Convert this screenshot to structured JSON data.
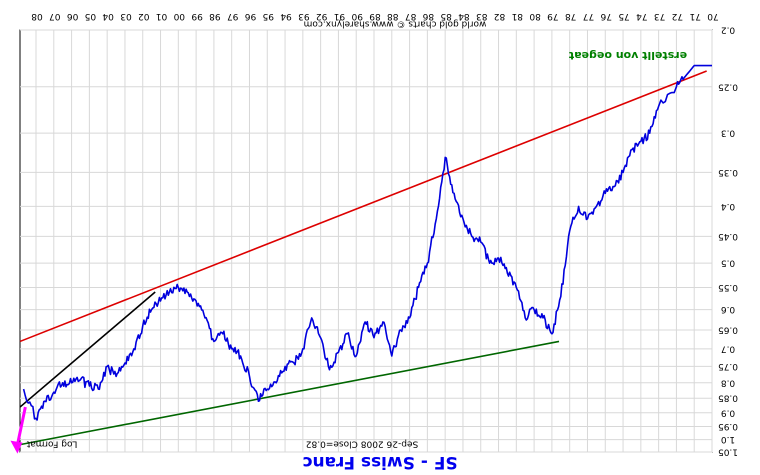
{
  "chart_data": {
    "type": "line",
    "orientation": "rotated-180",
    "title": "SF - Swiss Franc",
    "source_note": "world gold charts © www.sharelynx.com",
    "author_note": "erstellt von oegeat",
    "scale_label": "Log Format",
    "status_text": "Sep-26 2008   Close=0.82",
    "x_ticks": [
      "70",
      "71",
      "72",
      "73",
      "74",
      "75",
      "76",
      "77",
      "78",
      "79",
      "80",
      "81",
      "82",
      "83",
      "84",
      "85",
      "86",
      "87",
      "88",
      "89",
      "90",
      "91",
      "92",
      "93",
      "94",
      "95",
      "96",
      "97",
      "98",
      "99",
      "00",
      "01",
      "02",
      "03",
      "04",
      "05",
      "06",
      "07",
      "08"
    ],
    "y_ticks": [
      0.2,
      0.25,
      0.3,
      0.35,
      0.4,
      0.45,
      0.5,
      0.55,
      0.6,
      0.65,
      0.7,
      0.75,
      0.8,
      0.85,
      0.9,
      0.95,
      1.0,
      1.05
    ],
    "y_tick_labels": [
      "0.2",
      "0.25",
      "0.3",
      "0.35",
      "0.4",
      "0.45",
      "0.5",
      "0.55",
      "0.6",
      "0.65",
      "0.7",
      "0.75",
      "0.8",
      "0.85",
      "0.9",
      "0.95",
      "1.0",
      "1.05"
    ],
    "ylim": [
      0.2,
      1.05
    ],
    "log_scale": true,
    "grid": true,
    "series": [
      {
        "color": "#0000dd",
        "x": [
          1970,
          1971,
          1971.5,
          1972,
          1973,
          1973.5,
          1974,
          1974.5,
          1975,
          1975.5,
          1976,
          1976.5,
          1977,
          1977.5,
          1978,
          1978.5,
          1979,
          1979.5,
          1980,
          1980.5,
          1981,
          1981.5,
          1982,
          1982.5,
          1983,
          1983.5,
          1984,
          1984.5,
          1985,
          1985.5,
          1986,
          1986.5,
          1987,
          1987.5,
          1988,
          1988.5,
          1989,
          1989.5,
          1990,
          1990.5,
          1991,
          1991.5,
          1992,
          1992.5,
          1993,
          1993.5,
          1994,
          1994.5,
          1995,
          1995.5,
          1996,
          1996.5,
          1997,
          1997.5,
          1998,
          1998.5,
          1999,
          1999.5,
          2000,
          2000.5,
          2001,
          2001.5,
          2002,
          2002.5,
          2003,
          2003.5,
          2004,
          2004.5,
          2005,
          2005.5,
          2006,
          2006.5,
          2007,
          2007.5,
          2008,
          2008.7
        ],
        "values": [
          0.23,
          0.23,
          0.24,
          0.25,
          0.27,
          0.3,
          0.31,
          0.32,
          0.35,
          0.37,
          0.38,
          0.4,
          0.42,
          0.4,
          0.44,
          0.57,
          0.66,
          0.62,
          0.6,
          0.62,
          0.55,
          0.52,
          0.49,
          0.5,
          0.46,
          0.45,
          0.42,
          0.38,
          0.33,
          0.42,
          0.5,
          0.55,
          0.62,
          0.65,
          0.72,
          0.63,
          0.67,
          0.63,
          0.72,
          0.66,
          0.71,
          0.76,
          0.67,
          0.62,
          0.7,
          0.74,
          0.75,
          0.8,
          0.82,
          0.86,
          0.78,
          0.72,
          0.7,
          0.66,
          0.68,
          0.62,
          0.58,
          0.56,
          0.55,
          0.56,
          0.58,
          0.6,
          0.64,
          0.7,
          0.74,
          0.78,
          0.75,
          0.82,
          0.81,
          0.79,
          0.8,
          0.8,
          0.83,
          0.86,
          0.92,
          0.82
        ]
      }
    ],
    "trendlines": [
      {
        "color": "#dd0000",
        "x": [
          1970.3,
          2008.9
        ],
        "values": [
          0.235,
          0.68
        ]
      },
      {
        "color": "#006600",
        "x": [
          1978.6,
          2008.9
        ],
        "values": [
          0.68,
          1.02
        ]
      },
      {
        "color": "#000000",
        "x": [
          2001.3,
          2008.9
        ],
        "values": [
          0.56,
          0.88
        ]
      },
      {
        "color": "#ff00ff",
        "x": [
          2008.6,
          2009.1
        ],
        "values": [
          0.88,
          1.04
        ]
      }
    ]
  }
}
